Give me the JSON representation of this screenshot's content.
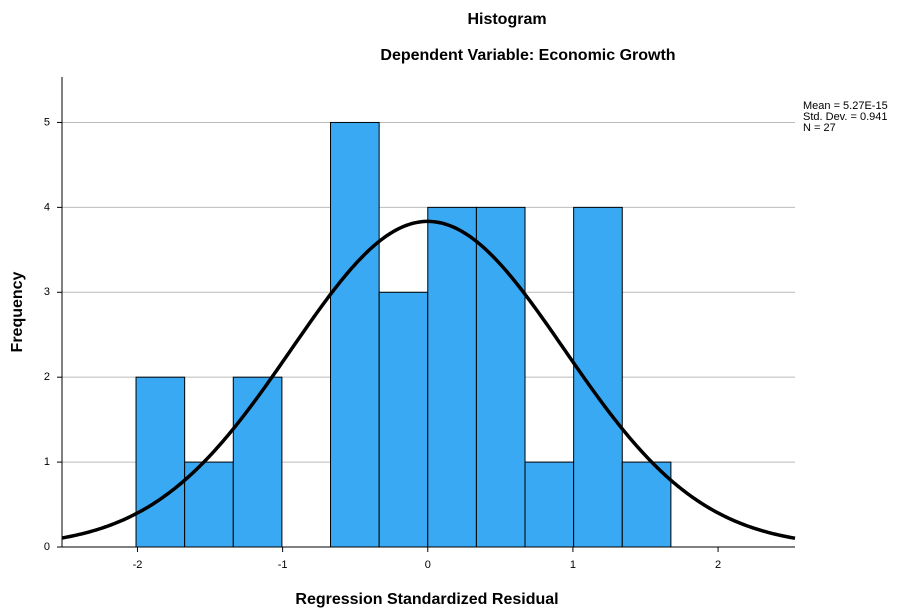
{
  "chart_data": {
    "type": "histogram",
    "title": "Histogram",
    "subtitle": "Dependent Variable: Economic Growth",
    "x_label": "Regression Standardized Residual",
    "y_label": "Frequency",
    "bins": [
      -2.01,
      -1.675,
      -1.34,
      -1.005,
      -0.67,
      -0.335,
      0.0,
      0.335,
      0.67,
      1.005,
      1.34,
      1.675
    ],
    "counts": [
      2,
      1,
      2,
      0,
      5,
      3,
      4,
      4,
      1,
      4,
      1
    ],
    "color": "#3aa9f4",
    "xlim": [
      -2.52,
      2.53
    ],
    "xticks": [
      -2,
      -1,
      0,
      1,
      2
    ],
    "ylim": [
      0,
      5.5
    ],
    "yticks": [
      0,
      1,
      2,
      3,
      4,
      5
    ],
    "grid": true,
    "stats": {
      "mean": {
        "value": 5.27e-15,
        "label": "Mean = 5.27E-15"
      },
      "sd": {
        "value": 0.941,
        "label": "Std. Dev. = 0.941"
      },
      "n": {
        "value": 27,
        "label": "N = 27"
      }
    }
  }
}
